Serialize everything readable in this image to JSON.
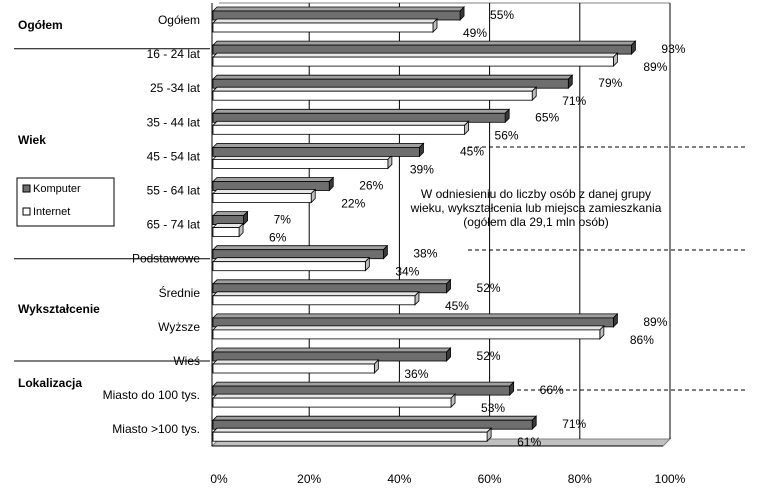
{
  "chart_data": {
    "type": "bar",
    "orientation": "horizontal",
    "bar_style": "3d",
    "xlim": [
      0,
      100
    ],
    "x_ticks": [
      "0%",
      "20%",
      "40%",
      "60%",
      "80%",
      "100%"
    ],
    "grid": true,
    "legend_position": "left",
    "legend": [
      "Komputer",
      "Internet"
    ],
    "series_colors": {
      "Komputer": "#6e6e6e",
      "Internet": "#ffffff"
    },
    "categories": [
      "Ogółem",
      "16 - 24 lat",
      "25 -34 lat",
      "35 - 44 lat",
      "45 - 54 lat",
      "55 - 64 lat",
      "65 - 74 lat",
      "Podstawowe",
      "Średnie",
      "Wyższe",
      "Wieś",
      "Miasto do 100 tys.",
      "Miasto >100 tys."
    ],
    "series": [
      {
        "name": "Komputer",
        "values": [
          55,
          93,
          79,
          65,
          null,
          26,
          7,
          38,
          52,
          89,
          52,
          66,
          71
        ],
        "labels": [
          "55%",
          "93%",
          "79%",
          "65%",
          "",
          "26%",
          "7%",
          "38%",
          "52%",
          "89%",
          "52%",
          "66%",
          "71%"
        ]
      },
      {
        "name": "Internet",
        "values": [
          49,
          89,
          71,
          56,
          39,
          22,
          6,
          34,
          45,
          86,
          36,
          53,
          61
        ],
        "labels": [
          "49%",
          "89%",
          "71%",
          "56%",
          "39%",
          "22%",
          "6%",
          "34%",
          "45%",
          "86%",
          "36%",
          "53%",
          "61%"
        ]
      }
    ],
    "extra_labels": [
      {
        "category_index": 4,
        "text": "45%"
      }
    ],
    "groups": [
      {
        "label": "Ogółem",
        "first": 0,
        "last": 0
      },
      {
        "label": "Wiek",
        "first": 1,
        "last": 6
      },
      {
        "label": "Wykształcenie",
        "first": 7,
        "last": 9
      },
      {
        "label": "Lokalizacja",
        "first": 10,
        "last": 12
      }
    ],
    "annotation": [
      "W odniesieniu do liczby osób z danej grupy",
      "wieku, wykształcenia lub miejsca zamieszkania",
      "(ogółem dla 29,1 mln osób)"
    ]
  }
}
